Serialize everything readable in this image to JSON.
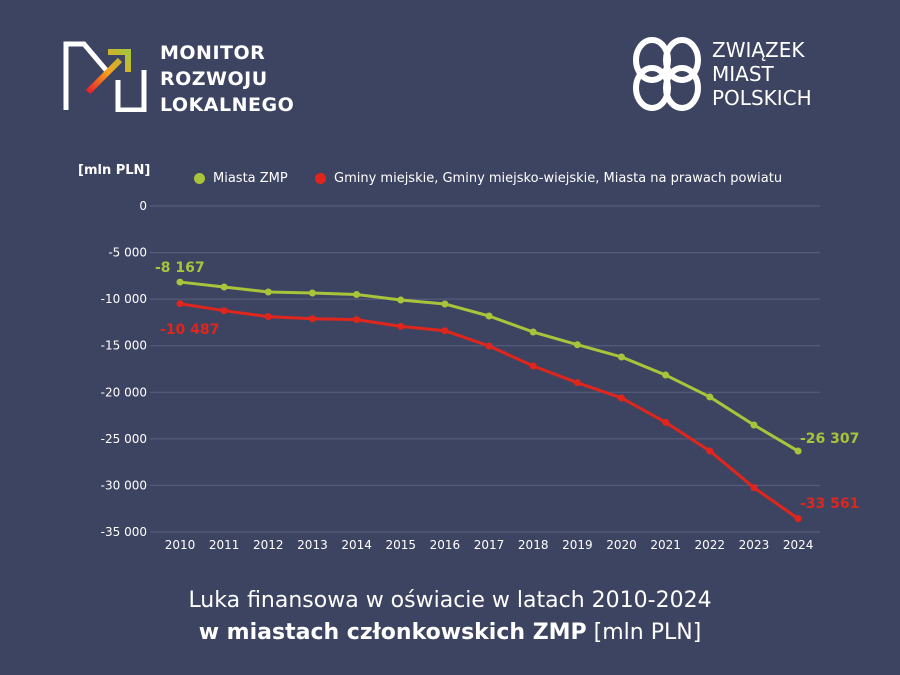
{
  "logos": {
    "monitor": {
      "lines": [
        "MONITOR",
        "ROZWOJU",
        "LOKALNEGO"
      ]
    },
    "zmp": {
      "lines": [
        "ZWIĄZEK",
        "MIAST",
        "POLSKICH"
      ]
    }
  },
  "colors": {
    "background": "#3d4461",
    "green": "#a8c43a",
    "red": "#e0261c",
    "grid": "#5a6080"
  },
  "chart_data": {
    "type": "line",
    "title_line1": "Luka finansowa w oświacie w latach 2010-2024",
    "title_line2_bold": "w miastach członkowskich ZMP",
    "title_line2_rest": " [mln PLN]",
    "ylabel": "[mln PLN]",
    "ylim": [
      -35000,
      0
    ],
    "yticks": [
      0,
      -5000,
      -10000,
      -15000,
      -20000,
      -25000,
      -30000,
      -35000
    ],
    "ytick_labels": [
      "0",
      "-5 000",
      "-10 000",
      "-15 000",
      "-20 000",
      "-25 000",
      "-30 000",
      "-35 000"
    ],
    "grid": true,
    "legend_position": "top",
    "categories": [
      "2010",
      "2011",
      "2012",
      "2013",
      "2014",
      "2015",
      "2016",
      "2017",
      "2018",
      "2019",
      "2020",
      "2021",
      "2022",
      "2023",
      "2024"
    ],
    "series": [
      {
        "name": "Miasta ZMP",
        "color": "#a8c43a",
        "values": [
          -8167,
          -8700,
          -9230,
          -9340,
          -9500,
          -10090,
          -10520,
          -11810,
          -13530,
          -14890,
          -16210,
          -18150,
          -20500,
          -23510,
          -26307
        ],
        "labels": {
          "first": "-8 167",
          "last": "-26 307"
        }
      },
      {
        "name": "Gminy miejskie, Gminy miejsko-wiejskie, Miasta na prawach powiatu",
        "color": "#e0261c",
        "values": [
          -10487,
          -11240,
          -11880,
          -12100,
          -12200,
          -12920,
          -13390,
          -15030,
          -17180,
          -18970,
          -20610,
          -23230,
          -26300,
          -30240,
          -33561
        ],
        "labels": {
          "first": "-10 487",
          "last": "-33 561"
        }
      }
    ]
  }
}
